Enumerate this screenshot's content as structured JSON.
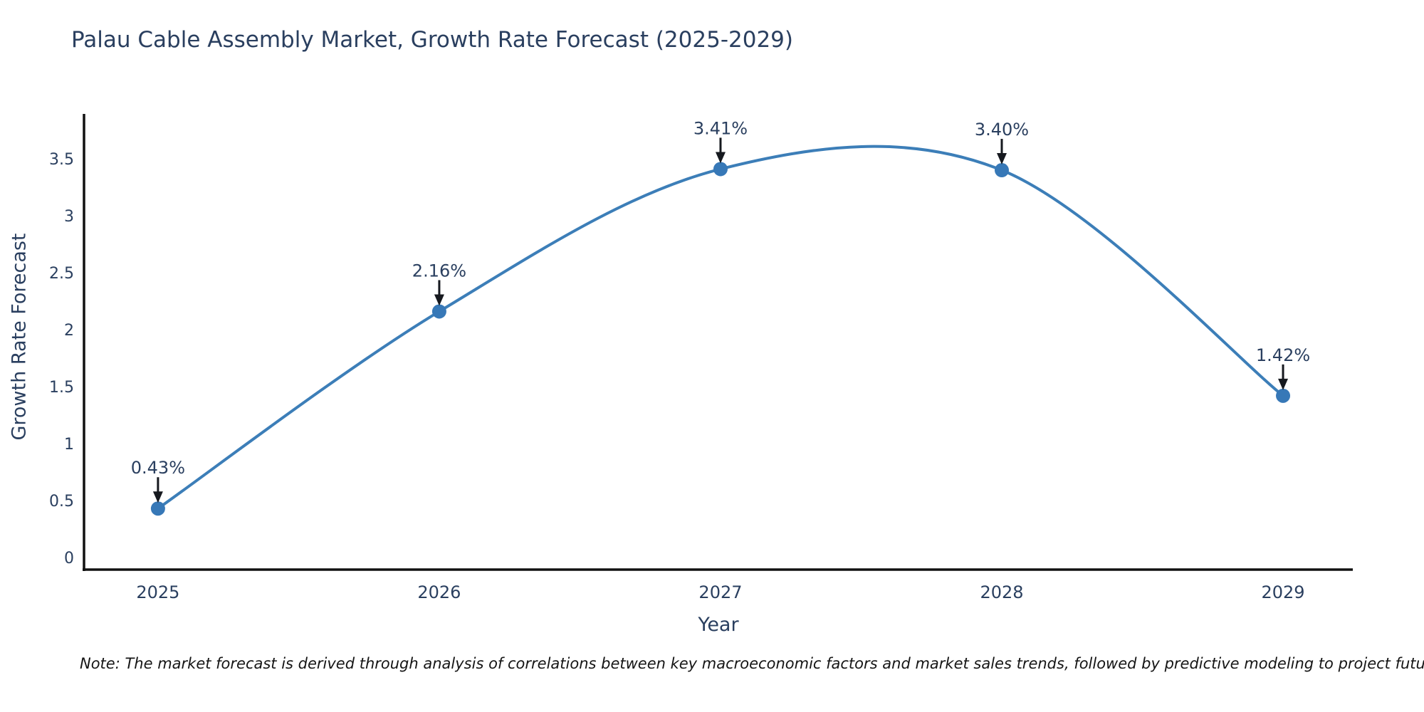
{
  "note": "Note: The market forecast is derived through analysis of correlations between key macroeconomic factors and market sales trends, followed by predictive modeling to project future sales",
  "chart_data": {
    "type": "line",
    "title": "Palau Cable Assembly Market, Growth Rate Forecast (2025-2029)",
    "xlabel": "Year",
    "ylabel": "Growth Rate Forecast",
    "categories": [
      "2025",
      "2026",
      "2027",
      "2028",
      "2029"
    ],
    "values": [
      0.43,
      2.16,
      3.41,
      3.4,
      1.42
    ],
    "point_labels": [
      "0.43%",
      "2.16%",
      "3.41%",
      "3.40%",
      "1.42%"
    ],
    "yticks": [
      0,
      0.5,
      1,
      1.5,
      2,
      2.5,
      3,
      3.5
    ],
    "ytick_labels": [
      "0",
      "0.5",
      "1",
      "1.5",
      "2",
      "2.5",
      "3",
      "3.5"
    ],
    "ylim": [
      -0.106,
      3.894
    ],
    "xlim": [
      -0.263,
      4.248
    ],
    "grid": false,
    "legend": false,
    "smooth": true,
    "annotations_have_arrows": true,
    "colors": {
      "line": "#3c7eb8",
      "marker": "#3778b7",
      "axis": "#111111",
      "tick_text": "#2a3f5f",
      "annotation_text": "#2a3f5f",
      "arrow": "#16191f",
      "title_text": "#2a3f5f",
      "note_text": "#151515",
      "background": "#ffffff"
    }
  }
}
